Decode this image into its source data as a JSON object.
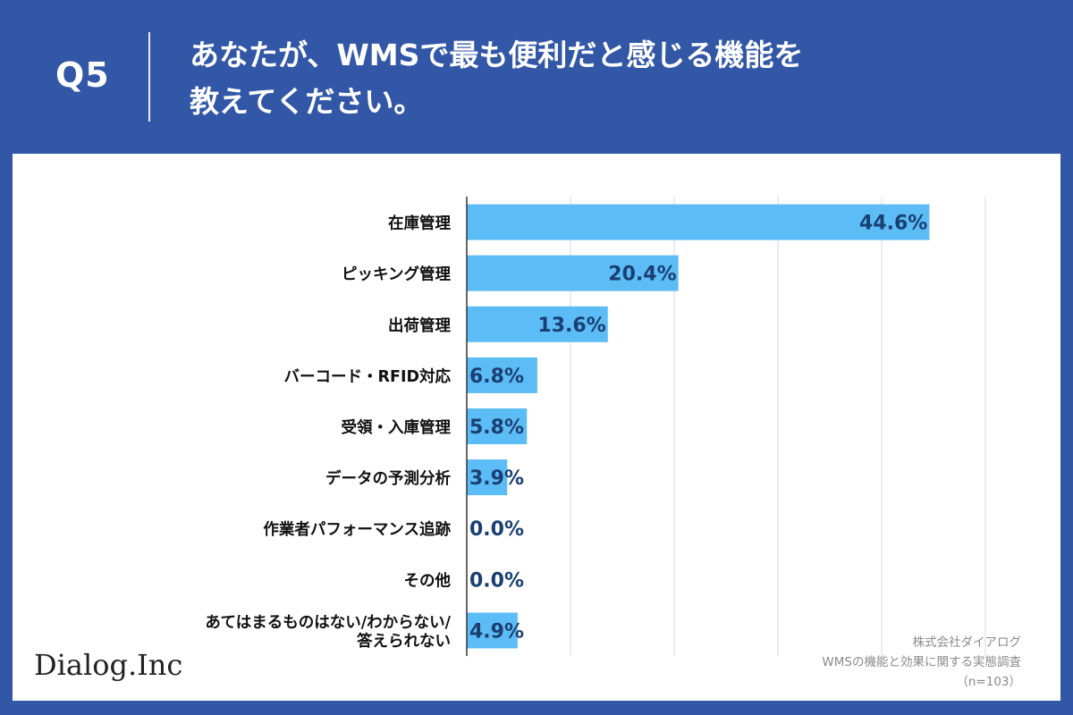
{
  "header": {
    "q_label": "Q5",
    "question_line1": "あなたが、WMSで最も便利だと感じる機能を",
    "question_line2": "教えてください。"
  },
  "footer": {
    "logo": "Dialog.Inc",
    "source_line1": "株式会社ダイアログ",
    "source_line2": "WMSの機能と効果に関する実態調査",
    "source_line3": "（n=103）"
  },
  "colors": {
    "background": "#3257a6",
    "bar": "#5cbcf5",
    "value_label": "#1a3f73",
    "category_label": "#111111",
    "grid": "#d9d9d9"
  },
  "chart_data": {
    "type": "bar",
    "orientation": "horizontal",
    "categories": [
      "在庫管理",
      "ピッキング管理",
      "出荷管理",
      "バーコード・RFID対応",
      "受領・入庫管理",
      "データの予測分析",
      "作業者パフォーマンス追跡",
      "その他",
      "あてはまるものはない/わからない/\n答えられない"
    ],
    "values": [
      44.6,
      20.4,
      13.6,
      6.8,
      5.8,
      3.9,
      0.0,
      0.0,
      4.9
    ],
    "value_labels": [
      "44.6%",
      "20.4%",
      "13.6%",
      "6.8%",
      "5.8%",
      "3.9%",
      "0.0%",
      "0.0%",
      "4.9%"
    ],
    "xlim": [
      0,
      50
    ],
    "grid": true,
    "legend": "none"
  }
}
